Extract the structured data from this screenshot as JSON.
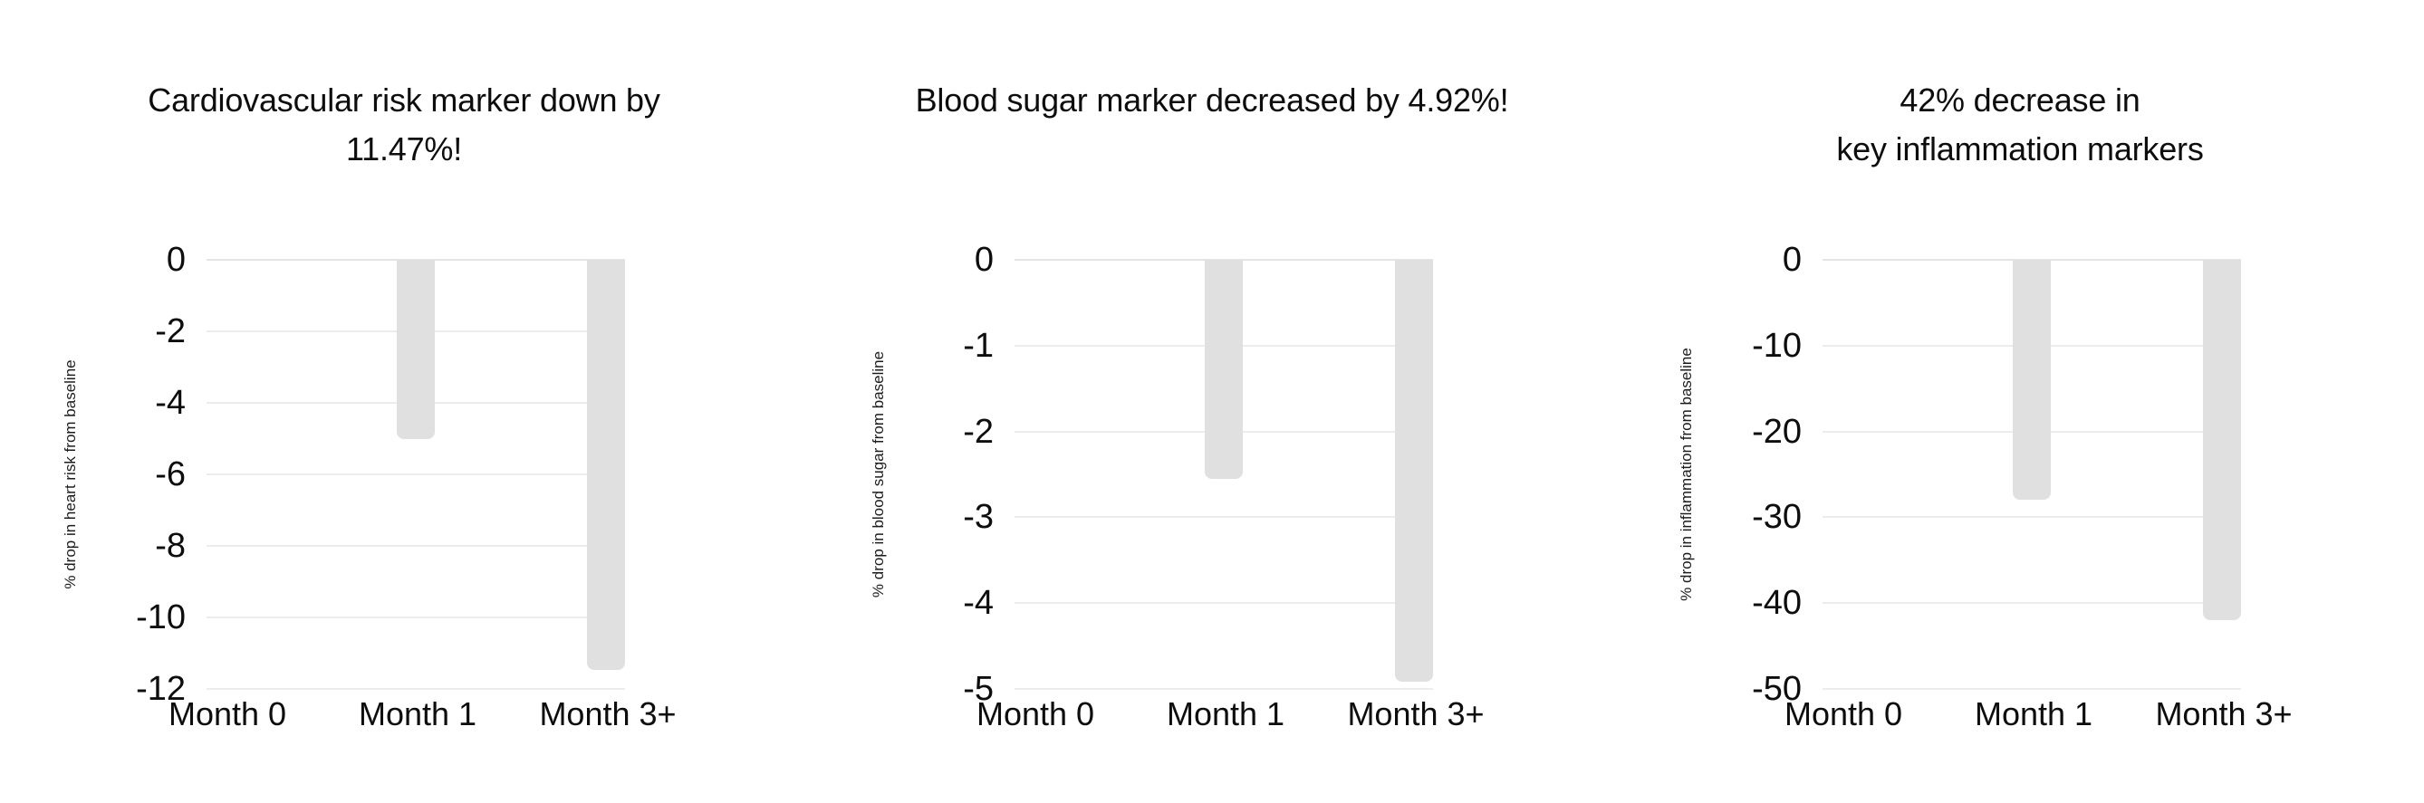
{
  "style": {
    "background": "#ffffff",
    "bar_color": "#e0e0e0",
    "grid_color": "#ececec",
    "zero_line_color": "#e4e4e4",
    "text_color": "#0d0d0d"
  },
  "chart_data": [
    {
      "type": "bar",
      "title": "Cardiovascular risk marker down by 11.47%!",
      "title_lines": [
        "Cardiovascular risk marker down by",
        "11.47%!"
      ],
      "ylabel": "% drop in heart risk from baseline",
      "xlabel": "",
      "categories": [
        "Month 0",
        "Month 1",
        "Month 3+"
      ],
      "values": [
        0,
        -5,
        -11.47
      ],
      "yticks": [
        0,
        -2,
        -4,
        -6,
        -8,
        -10,
        -12
      ],
      "ylim": [
        -12,
        0
      ],
      "grid": true,
      "legend": "none"
    },
    {
      "type": "bar",
      "title": "Blood sugar marker decreased by 4.92%!",
      "title_lines": [
        "Blood sugar marker decreased by 4.92%!"
      ],
      "ylabel": "% drop in blood sugar from baseline",
      "xlabel": "",
      "categories": [
        "Month 0",
        "Month 1",
        "Month 3+"
      ],
      "values": [
        0,
        -2.55,
        -4.92
      ],
      "yticks": [
        0,
        -1,
        -2,
        -3,
        -4,
        -5
      ],
      "ylim": [
        -5,
        0
      ],
      "grid": true,
      "legend": "none"
    },
    {
      "type": "bar",
      "title": "42% decrease in key inflammation markers",
      "title_lines": [
        "42% decrease in",
        "key inflammation markers"
      ],
      "ylabel": "% drop in inflammation from baseline",
      "xlabel": "",
      "categories": [
        "Month 0",
        "Month 1",
        "Month 3+"
      ],
      "values": [
        0,
        -28,
        -42
      ],
      "yticks": [
        0,
        -10,
        -20,
        -30,
        -40,
        -50
      ],
      "ylim": [
        -50,
        0
      ],
      "grid": true,
      "legend": "none"
    }
  ]
}
